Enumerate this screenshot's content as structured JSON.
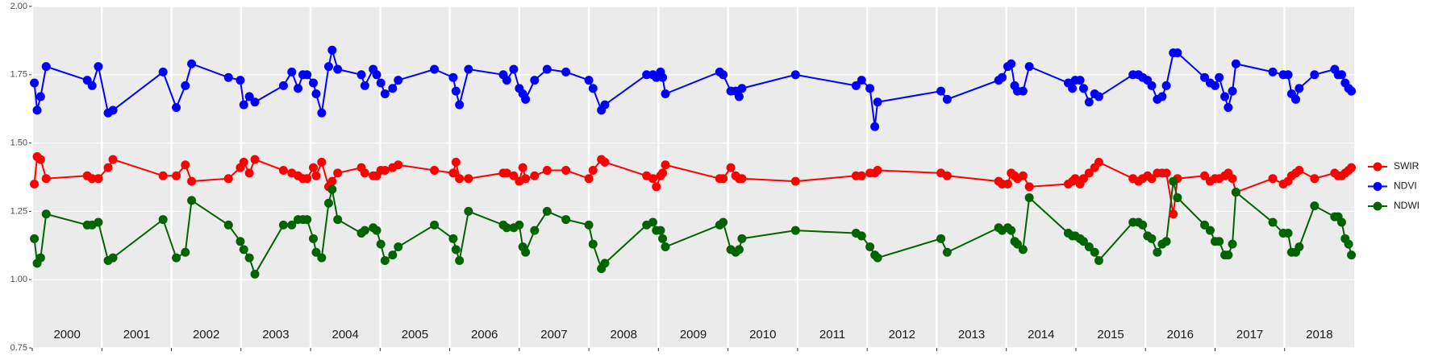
{
  "chart_data": {
    "type": "line",
    "x": [
      2000.03,
      2000.07,
      2000.12,
      2000.2,
      2000.79,
      2000.86,
      2000.95,
      2001.09,
      2001.16,
      2001.88,
      2002.07,
      2002.2,
      2002.29,
      2002.82,
      2002.99,
      2003.04,
      2003.12,
      2003.2,
      2003.61,
      2003.73,
      2003.82,
      2003.89,
      2003.95,
      2004.04,
      2004.08,
      2004.16,
      2004.26,
      2004.31,
      2004.39,
      2004.73,
      2004.78,
      2004.9,
      2004.95,
      2005.01,
      2005.07,
      2005.18,
      2005.26,
      2005.78,
      2006.05,
      2006.09,
      2006.14,
      2006.27,
      2006.77,
      2006.82,
      2006.92,
      2007.0,
      2007.05,
      2007.09,
      2007.22,
      2007.4,
      2007.67,
      2008.0,
      2008.06,
      2008.18,
      2008.23,
      2008.83,
      2008.92,
      2008.97,
      2009.03,
      2009.06,
      2009.1,
      2009.88,
      2009.93,
      2010.04,
      2010.11,
      2010.16,
      2010.2,
      2010.97,
      2011.84,
      2011.92,
      2012.04,
      2012.11,
      2012.15,
      2013.06,
      2013.15,
      2013.89,
      2013.94,
      2014.02,
      2014.07,
      2014.12,
      2014.16,
      2014.24,
      2014.33,
      2014.89,
      2014.95,
      2014.99,
      2015.06,
      2015.11,
      2015.19,
      2015.27,
      2015.33,
      2015.82,
      2015.9,
      2015.96,
      2016.03,
      2016.09,
      2016.17,
      2016.24,
      2016.3,
      2016.4,
      2016.46,
      2016.85,
      2016.93,
      2017.0,
      2017.06,
      2017.14,
      2017.19,
      2017.25,
      2017.3,
      2017.83,
      2017.98,
      2018.05,
      2018.1,
      2018.16,
      2018.21,
      2018.43,
      2018.72,
      2018.77,
      2018.82,
      2018.87,
      2018.92,
      2018.96
    ],
    "series": [
      {
        "name": "SWIR",
        "color": "#ff0000",
        "values": [
          1.35,
          1.45,
          1.44,
          1.37,
          1.38,
          1.37,
          1.37,
          1.41,
          1.44,
          1.38,
          1.38,
          1.42,
          1.36,
          1.37,
          1.41,
          1.43,
          1.39,
          1.44,
          1.4,
          1.39,
          1.38,
          1.37,
          1.37,
          1.41,
          1.38,
          1.43,
          1.34,
          1.36,
          1.39,
          1.41,
          1.39,
          1.38,
          1.38,
          1.4,
          1.4,
          1.41,
          1.42,
          1.4,
          1.39,
          1.43,
          1.37,
          1.37,
          1.39,
          1.39,
          1.38,
          1.36,
          1.41,
          1.37,
          1.38,
          1.4,
          1.4,
          1.37,
          1.4,
          1.44,
          1.43,
          1.38,
          1.37,
          1.34,
          1.38,
          1.39,
          1.42,
          1.37,
          1.37,
          1.41,
          1.38,
          1.37,
          1.37,
          1.36,
          1.38,
          1.38,
          1.39,
          1.39,
          1.4,
          1.39,
          1.38,
          1.36,
          1.35,
          1.35,
          1.39,
          1.38,
          1.37,
          1.38,
          1.34,
          1.35,
          1.36,
          1.37,
          1.35,
          1.37,
          1.39,
          1.41,
          1.43,
          1.37,
          1.36,
          1.37,
          1.38,
          1.37,
          1.39,
          1.39,
          1.39,
          1.24,
          1.37,
          1.38,
          1.36,
          1.37,
          1.37,
          1.38,
          1.39,
          1.37,
          1.32,
          1.37,
          1.35,
          1.36,
          1.38,
          1.39,
          1.4,
          1.37,
          1.39,
          1.38,
          1.38,
          1.39,
          1.4,
          1.41
        ]
      },
      {
        "name": "NDVI",
        "color": "#0000ff",
        "values": [
          1.72,
          1.62,
          1.67,
          1.78,
          1.73,
          1.71,
          1.78,
          1.61,
          1.62,
          1.76,
          1.63,
          1.71,
          1.79,
          1.74,
          1.73,
          1.64,
          1.67,
          1.65,
          1.71,
          1.76,
          1.7,
          1.75,
          1.75,
          1.72,
          1.68,
          1.61,
          1.78,
          1.84,
          1.77,
          1.75,
          1.71,
          1.77,
          1.75,
          1.72,
          1.68,
          1.7,
          1.73,
          1.77,
          1.74,
          1.69,
          1.64,
          1.77,
          1.75,
          1.73,
          1.77,
          1.7,
          1.68,
          1.66,
          1.73,
          1.77,
          1.76,
          1.73,
          1.7,
          1.62,
          1.64,
          1.75,
          1.75,
          1.74,
          1.76,
          1.74,
          1.68,
          1.76,
          1.75,
          1.69,
          1.69,
          1.67,
          1.7,
          1.75,
          1.71,
          1.73,
          1.7,
          1.56,
          1.65,
          1.69,
          1.66,
          1.73,
          1.74,
          1.78,
          1.79,
          1.71,
          1.69,
          1.69,
          1.78,
          1.72,
          1.7,
          1.73,
          1.73,
          1.7,
          1.65,
          1.68,
          1.67,
          1.75,
          1.75,
          1.74,
          1.73,
          1.71,
          1.66,
          1.67,
          1.71,
          1.83,
          1.83,
          1.74,
          1.72,
          1.71,
          1.74,
          1.67,
          1.63,
          1.69,
          1.79,
          1.76,
          1.75,
          1.75,
          1.68,
          1.66,
          1.7,
          1.75,
          1.77,
          1.75,
          1.75,
          1.72,
          1.7,
          1.69
        ]
      },
      {
        "name": "NDWI",
        "color": "#006400",
        "values": [
          1.15,
          1.06,
          1.08,
          1.24,
          1.2,
          1.2,
          1.21,
          1.07,
          1.08,
          1.22,
          1.08,
          1.1,
          1.29,
          1.2,
          1.14,
          1.11,
          1.08,
          1.02,
          1.2,
          1.2,
          1.22,
          1.22,
          1.22,
          1.15,
          1.1,
          1.08,
          1.28,
          1.33,
          1.22,
          1.17,
          1.18,
          1.19,
          1.18,
          1.13,
          1.07,
          1.09,
          1.12,
          1.2,
          1.15,
          1.11,
          1.07,
          1.25,
          1.2,
          1.19,
          1.19,
          1.2,
          1.12,
          1.1,
          1.18,
          1.25,
          1.22,
          1.2,
          1.13,
          1.04,
          1.06,
          1.2,
          1.21,
          1.18,
          1.18,
          1.15,
          1.12,
          1.2,
          1.21,
          1.11,
          1.1,
          1.11,
          1.15,
          1.18,
          1.17,
          1.16,
          1.12,
          1.09,
          1.08,
          1.15,
          1.1,
          1.19,
          1.18,
          1.19,
          1.18,
          1.14,
          1.13,
          1.11,
          1.3,
          1.17,
          1.16,
          1.16,
          1.15,
          1.14,
          1.12,
          1.1,
          1.07,
          1.21,
          1.21,
          1.2,
          1.16,
          1.15,
          1.1,
          1.13,
          1.14,
          1.36,
          1.3,
          1.2,
          1.18,
          1.14,
          1.14,
          1.09,
          1.09,
          1.13,
          1.32,
          1.21,
          1.17,
          1.17,
          1.1,
          1.1,
          1.12,
          1.27,
          1.23,
          1.23,
          1.21,
          1.15,
          1.13,
          1.09
        ]
      }
    ],
    "xlim": [
      2000,
      2019
    ],
    "xticks": [
      2000,
      2001,
      2002,
      2003,
      2004,
      2005,
      2006,
      2007,
      2008,
      2009,
      2010,
      2011,
      2012,
      2013,
      2014,
      2015,
      2016,
      2017,
      2018
    ],
    "ylim": [
      0.75,
      2.0
    ],
    "yticks": [
      {
        "value": 0.75,
        "label": "0.75"
      },
      {
        "value": 1.0,
        "label": "1.00"
      },
      {
        "value": 1.25,
        "label": "1.25"
      },
      {
        "value": 1.5,
        "label": "1.50"
      },
      {
        "value": 1.75,
        "label": "1.75"
      },
      {
        "value": 2.0,
        "label": "2.00"
      }
    ],
    "grid": true,
    "legend": "right"
  }
}
